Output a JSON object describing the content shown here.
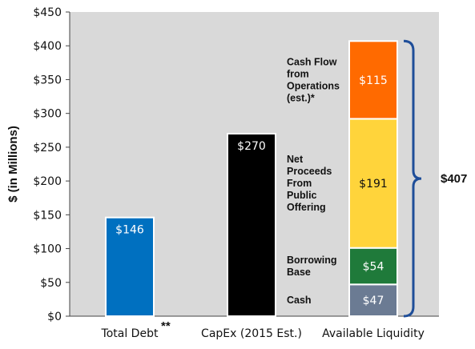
{
  "chart_data": {
    "type": "bar",
    "ylabel": "$ (in Millions)",
    "ylim": [
      0,
      450
    ],
    "yticks": [
      0,
      50,
      100,
      150,
      200,
      250,
      300,
      350,
      400,
      450
    ],
    "ytick_labels": [
      "$0",
      "$50",
      "$100",
      "$150",
      "$200",
      "$250",
      "$300",
      "$350",
      "$400",
      "$450"
    ],
    "categories": [
      "Total Debt",
      "CapEx (2015 Est.)",
      "Available Liquidity"
    ],
    "category_footnote": "**",
    "grid": false,
    "background": "#d9d9d9",
    "bars": [
      {
        "category": "Total Debt",
        "value": 146,
        "label": "$146",
        "color": "#0070c0"
      },
      {
        "category": "CapEx (2015 Est.)",
        "value": 270,
        "label": "$270",
        "color": "#000000"
      }
    ],
    "stacked": {
      "category": "Available Liquidity",
      "segments": [
        {
          "name_lines": [
            "Cash"
          ],
          "value": 47,
          "label": "$47",
          "color": "#6b7b93",
          "text_color": "#ffffff"
        },
        {
          "name_lines": [
            "Borrowing",
            "Base"
          ],
          "value": 54,
          "label": "$54",
          "color": "#1f7a3a",
          "text_color": "#ffffff"
        },
        {
          "name_lines": [
            "Net",
            "Proceeds",
            "From",
            "Public",
            "Offering"
          ],
          "value": 191,
          "label": "$191",
          "color": "#ffd43b",
          "text_color": "#111111"
        },
        {
          "name_lines": [
            "Cash Flow",
            "from",
            "Operations",
            "(est.)*"
          ],
          "value": 115,
          "label": "$115",
          "color": "#ff6a00",
          "text_color": "#ffffff"
        }
      ],
      "total": 407,
      "total_label": "$407",
      "brace_color": "#1f4e99"
    }
  }
}
